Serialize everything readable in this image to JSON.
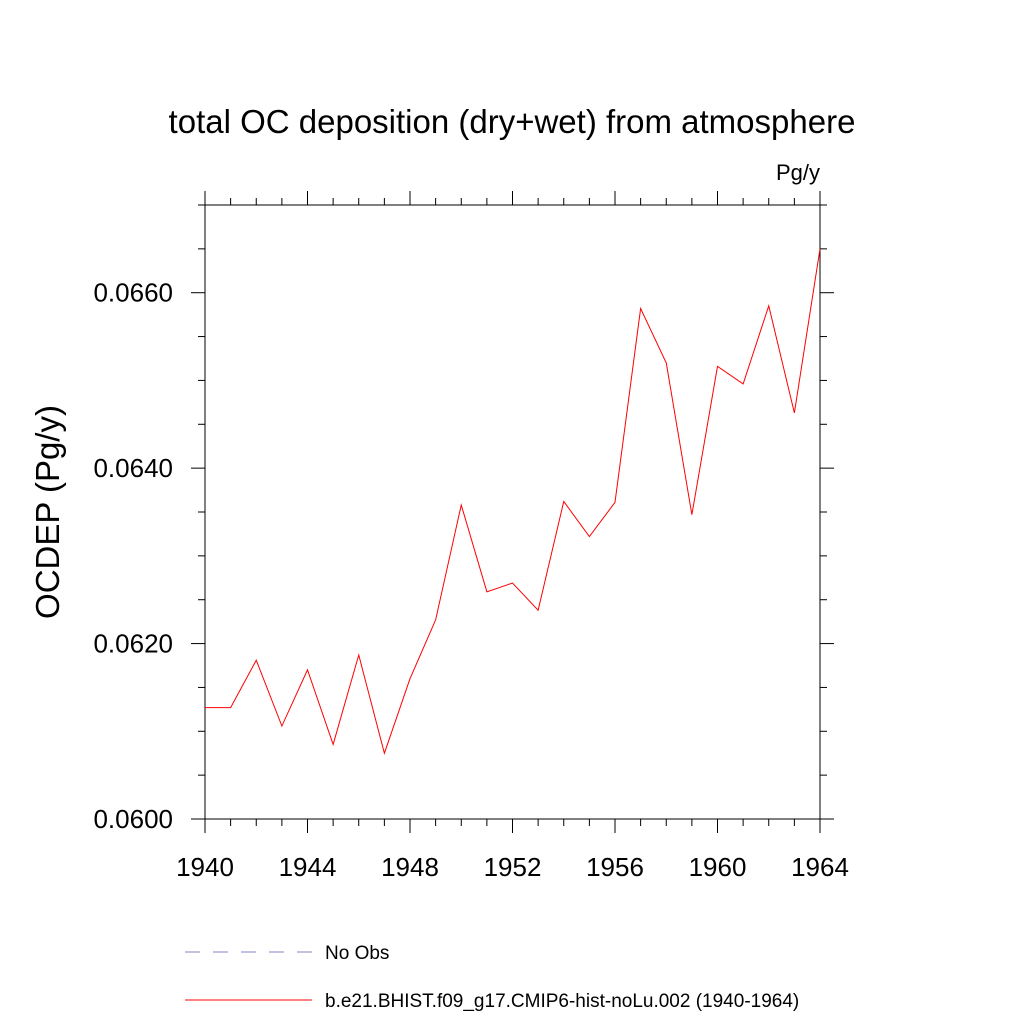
{
  "chart_data": {
    "type": "line",
    "title": "total OC deposition (dry+wet) from atmosphere",
    "units_label": "Pg/y",
    "xlabel": "",
    "ylabel": "OCDEP  (Pg/y)",
    "xlim": [
      1940,
      1964
    ],
    "ylim": [
      0.06,
      0.067
    ],
    "x_ticks": [
      1940,
      1944,
      1948,
      1952,
      1956,
      1960,
      1964
    ],
    "x_tick_labels": [
      "1940",
      "1944",
      "1948",
      "1952",
      "1956",
      "1960",
      "1964"
    ],
    "y_ticks": [
      0.06,
      0.062,
      0.064,
      0.066
    ],
    "y_tick_labels": [
      "0.0600",
      "0.0620",
      "0.0640",
      "0.0660"
    ],
    "grid": false,
    "series": [
      {
        "name": "b.e21.BHIST.f09_g17.CMIP6-hist-noLu.002 (1940-1964)",
        "color": "#ff0000",
        "x": [
          1940,
          1941,
          1942,
          1943,
          1944,
          1945,
          1946,
          1947,
          1948,
          1949,
          1950,
          1951,
          1952,
          1953,
          1954,
          1955,
          1956,
          1957,
          1958,
          1959,
          1960,
          1961,
          1962,
          1963,
          1964
        ],
        "values": [
          0.06127,
          0.06127,
          0.06181,
          0.06106,
          0.0617,
          0.06085,
          0.06187,
          0.06075,
          0.0616,
          0.06227,
          0.06358,
          0.06259,
          0.06269,
          0.06238,
          0.06362,
          0.06322,
          0.06361,
          0.06582,
          0.0652,
          0.06347,
          0.06516,
          0.06496,
          0.06585,
          0.06463,
          0.0665
        ]
      }
    ],
    "legend": [
      {
        "label": "No Obs",
        "color": "#8080c0",
        "style": "dashed"
      },
      {
        "label": "b.e21.BHIST.f09_g17.CMIP6-hist-noLu.002 (1940-1964)",
        "color": "#ff0000",
        "style": "solid"
      }
    ]
  }
}
